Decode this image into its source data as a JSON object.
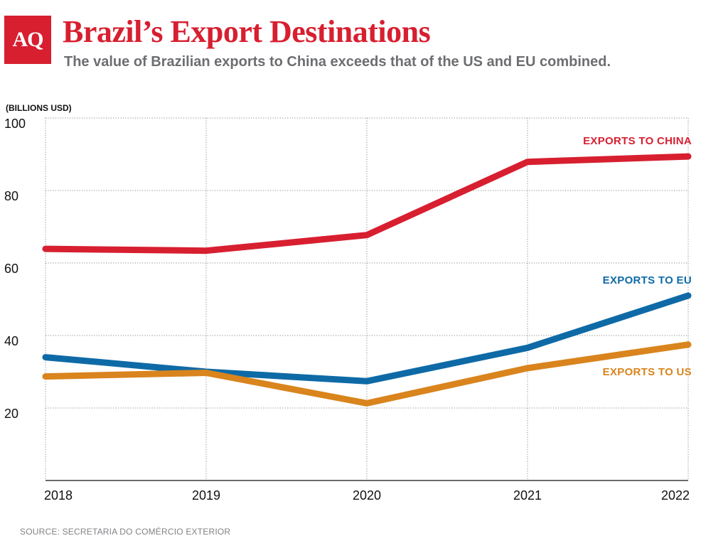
{
  "logo": {
    "text": "AQ",
    "color": "#d71f30"
  },
  "title": "Brazil’s Export Destinations",
  "subtitle": "The value of Brazilian exports to China exceeds that of the US and EU combined.",
  "source": "SOURCE: SECRETARIA DO COMÉRCIO EXTERIOR",
  "chart_data": {
    "type": "line",
    "ylabel": "(BILLIONS USD)",
    "x": [
      "2018",
      "2019",
      "2020",
      "2021",
      "2022"
    ],
    "ylim": [
      0,
      100
    ],
    "yticks": [
      20,
      40,
      60,
      80,
      100
    ],
    "grid": true,
    "series": [
      {
        "name": "EXPORTS TO CHINA",
        "color": "#d71f30",
        "values": [
          63.9,
          63.4,
          67.7,
          87.9,
          89.4
        ]
      },
      {
        "name": "EXPORTS TO EU",
        "color": "#0e6aa6",
        "values": [
          34.0,
          30.0,
          27.4,
          36.6,
          51.0
        ]
      },
      {
        "name": "EXPORTS TO US",
        "color": "#d9841d",
        "values": [
          28.7,
          29.7,
          21.3,
          31.0,
          37.5
        ]
      }
    ]
  }
}
